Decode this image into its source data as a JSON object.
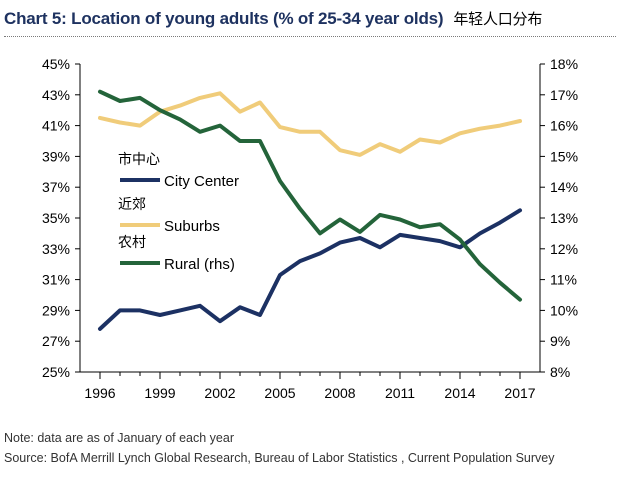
{
  "header": {
    "title": "Chart 5: Location of young adults (% of 25-34 year olds)",
    "title_cn": "年轻人口分布"
  },
  "notes": {
    "note": "Note: data are as of January of each year",
    "source": "Source: BofA Merrill Lynch Global Research, Bureau of Labor Statistics , Current Population Survey"
  },
  "colors": {
    "city": "#1c3163",
    "suburbs": "#f0cc7a",
    "rural": "#24643a",
    "axis": "#000000"
  },
  "chart_data": {
    "type": "line",
    "title": "Chart 5: Location of young adults (% of 25-34 year olds)",
    "x": [
      1996,
      1997,
      1998,
      1999,
      2000,
      2001,
      2002,
      2003,
      2004,
      2005,
      2006,
      2007,
      2008,
      2009,
      2010,
      2011,
      2012,
      2013,
      2014,
      2015,
      2016,
      2017
    ],
    "x_ticks": [
      1996,
      1999,
      2002,
      2005,
      2008,
      2011,
      2014,
      2017
    ],
    "x_tick_labels": [
      "1996",
      "1999",
      "2002",
      "2005",
      "2008",
      "2011",
      "2014",
      "2017"
    ],
    "ylim_left": [
      25,
      45
    ],
    "y_ticks_left": [
      25,
      27,
      29,
      31,
      33,
      35,
      37,
      39,
      41,
      43,
      45
    ],
    "y_tick_labels_left": [
      "25%",
      "27%",
      "29%",
      "31%",
      "33%",
      "35%",
      "37%",
      "39%",
      "41%",
      "43%",
      "45%"
    ],
    "ylim_right": [
      8,
      18
    ],
    "y_ticks_right": [
      8,
      9,
      10,
      11,
      12,
      13,
      14,
      15,
      16,
      17,
      18
    ],
    "y_tick_labels_right": [
      "8%",
      "9%",
      "10%",
      "11%",
      "12%",
      "13%",
      "14%",
      "15%",
      "16%",
      "17%",
      "18%"
    ],
    "series": [
      {
        "name": "City Center",
        "name_cn": "市中心",
        "axis": "left",
        "color": "#1c3163",
        "values": [
          27.8,
          29.0,
          29.0,
          28.7,
          29.0,
          29.3,
          28.3,
          29.2,
          28.7,
          31.3,
          32.2,
          32.7,
          33.4,
          33.7,
          33.1,
          33.9,
          33.7,
          33.5,
          33.1,
          34.0,
          34.7,
          35.5
        ]
      },
      {
        "name": "Suburbs",
        "name_cn": "近郊",
        "axis": "left",
        "color": "#f0cc7a",
        "values": [
          41.5,
          41.2,
          41.0,
          41.9,
          42.3,
          42.8,
          43.1,
          41.9,
          42.5,
          40.9,
          40.6,
          40.6,
          39.4,
          39.1,
          39.8,
          39.3,
          40.1,
          39.9,
          40.5,
          40.8,
          41.0,
          41.3
        ]
      },
      {
        "name": "Rural (rhs)",
        "name_cn": "农村",
        "axis": "right",
        "color": "#24643a",
        "values": [
          17.1,
          16.8,
          16.9,
          16.5,
          16.2,
          15.8,
          16.0,
          15.5,
          15.5,
          14.2,
          13.3,
          12.5,
          12.95,
          12.55,
          13.1,
          12.95,
          12.7,
          12.8,
          12.3,
          11.5,
          10.9,
          10.35
        ]
      }
    ],
    "legend": "inside-left",
    "grid": false
  }
}
